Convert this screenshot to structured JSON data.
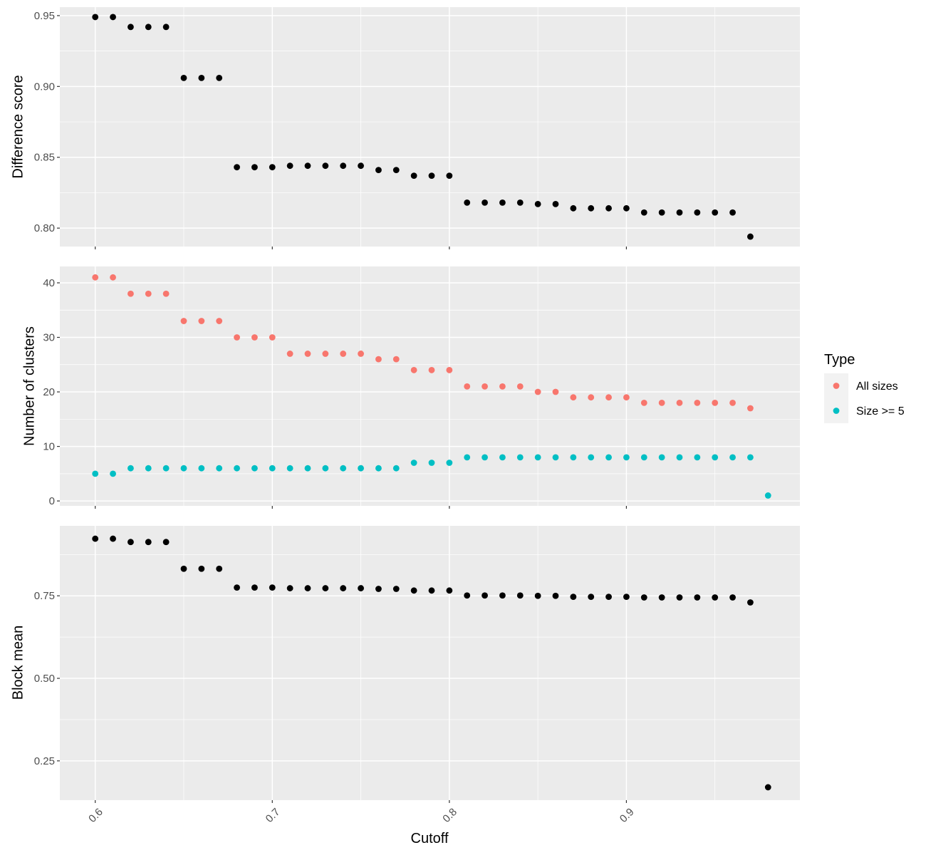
{
  "chart_data": [
    {
      "type": "scatter",
      "panel": "difference-score",
      "ylabel": "Difference score",
      "xlim": [
        0.58,
        0.998
      ],
      "ylim": [
        0.787,
        0.956
      ],
      "x_ticks": [
        0.6,
        0.7,
        0.8,
        0.9
      ],
      "y_ticks": [
        0.8,
        0.85,
        0.9,
        0.95
      ],
      "y_tick_labels": [
        "0.80",
        "0.85",
        "0.90",
        "0.95"
      ],
      "grid": true,
      "series": [
        {
          "color": "#000000",
          "x": [
            0.6,
            0.61,
            0.62,
            0.63,
            0.64,
            0.65,
            0.66,
            0.67,
            0.68,
            0.69,
            0.7,
            0.71,
            0.72,
            0.73,
            0.74,
            0.75,
            0.76,
            0.77,
            0.78,
            0.79,
            0.8,
            0.81,
            0.82,
            0.83,
            0.84,
            0.85,
            0.86,
            0.87,
            0.88,
            0.89,
            0.9,
            0.91,
            0.92,
            0.93,
            0.94,
            0.95,
            0.96,
            0.97
          ],
          "y": [
            0.949,
            0.949,
            0.942,
            0.942,
            0.942,
            0.906,
            0.906,
            0.906,
            0.843,
            0.843,
            0.843,
            0.844,
            0.844,
            0.844,
            0.844,
            0.844,
            0.841,
            0.841,
            0.837,
            0.837,
            0.837,
            0.818,
            0.818,
            0.818,
            0.818,
            0.817,
            0.817,
            0.814,
            0.814,
            0.814,
            0.814,
            0.811,
            0.811,
            0.811,
            0.811,
            0.811,
            0.811,
            0.794
          ]
        }
      ]
    },
    {
      "type": "scatter",
      "panel": "number-of-clusters",
      "ylabel": "Number of clusters",
      "xlim": [
        0.58,
        0.998
      ],
      "ylim": [
        -0.9,
        43.0
      ],
      "x_ticks": [
        0.6,
        0.7,
        0.8,
        0.9
      ],
      "y_ticks": [
        0,
        10,
        20,
        30,
        40
      ],
      "y_tick_labels": [
        "0",
        "10",
        "20",
        "30",
        "40"
      ],
      "grid": true,
      "series": [
        {
          "name": "All sizes",
          "color": "#F8766D",
          "x": [
            0.6,
            0.61,
            0.62,
            0.63,
            0.64,
            0.65,
            0.66,
            0.67,
            0.68,
            0.69,
            0.7,
            0.71,
            0.72,
            0.73,
            0.74,
            0.75,
            0.76,
            0.77,
            0.78,
            0.79,
            0.8,
            0.81,
            0.82,
            0.83,
            0.84,
            0.85,
            0.86,
            0.87,
            0.88,
            0.89,
            0.9,
            0.91,
            0.92,
            0.93,
            0.94,
            0.95,
            0.96,
            0.97
          ],
          "y": [
            41,
            41,
            38,
            38,
            38,
            33,
            33,
            33,
            30,
            30,
            30,
            27,
            27,
            27,
            27,
            27,
            26,
            26,
            24,
            24,
            24,
            21,
            21,
            21,
            21,
            20,
            20,
            19,
            19,
            19,
            19,
            18,
            18,
            18,
            18,
            18,
            18,
            17
          ]
        },
        {
          "name": "Size >= 5",
          "color": "#00BFC4",
          "x": [
            0.6,
            0.61,
            0.62,
            0.63,
            0.64,
            0.65,
            0.66,
            0.67,
            0.68,
            0.69,
            0.7,
            0.71,
            0.72,
            0.73,
            0.74,
            0.75,
            0.76,
            0.77,
            0.78,
            0.79,
            0.8,
            0.81,
            0.82,
            0.83,
            0.84,
            0.85,
            0.86,
            0.87,
            0.88,
            0.89,
            0.9,
            0.91,
            0.92,
            0.93,
            0.94,
            0.95,
            0.96,
            0.97,
            0.98
          ],
          "y": [
            5,
            5,
            6,
            6,
            6,
            6,
            6,
            6,
            6,
            6,
            6,
            6,
            6,
            6,
            6,
            6,
            6,
            6,
            7,
            7,
            7,
            8,
            8,
            8,
            8,
            8,
            8,
            8,
            8,
            8,
            8,
            8,
            8,
            8,
            8,
            8,
            8,
            8,
            1
          ]
        }
      ]
    },
    {
      "type": "scatter",
      "panel": "block-mean",
      "ylabel": "Block mean",
      "xlabel": "Cutoff",
      "xlim": [
        0.58,
        0.998
      ],
      "ylim": [
        0.131,
        0.962
      ],
      "x_ticks": [
        0.6,
        0.7,
        0.8,
        0.9
      ],
      "x_tick_labels": [
        "0.6",
        "0.7",
        "0.8",
        "0.9"
      ],
      "y_ticks": [
        0.25,
        0.5,
        0.75
      ],
      "y_tick_labels": [
        "0.25",
        "0.50",
        "0.75"
      ],
      "grid": true,
      "series": [
        {
          "color": "#000000",
          "x": [
            0.6,
            0.61,
            0.62,
            0.63,
            0.64,
            0.65,
            0.66,
            0.67,
            0.68,
            0.69,
            0.7,
            0.71,
            0.72,
            0.73,
            0.74,
            0.75,
            0.76,
            0.77,
            0.78,
            0.79,
            0.8,
            0.81,
            0.82,
            0.83,
            0.84,
            0.85,
            0.86,
            0.87,
            0.88,
            0.89,
            0.9,
            0.91,
            0.92,
            0.93,
            0.94,
            0.95,
            0.96,
            0.97,
            0.98
          ],
          "y": [
            0.923,
            0.923,
            0.913,
            0.913,
            0.913,
            0.832,
            0.832,
            0.832,
            0.775,
            0.775,
            0.775,
            0.773,
            0.773,
            0.773,
            0.773,
            0.773,
            0.771,
            0.771,
            0.766,
            0.766,
            0.766,
            0.751,
            0.751,
            0.751,
            0.751,
            0.75,
            0.75,
            0.747,
            0.747,
            0.747,
            0.747,
            0.745,
            0.745,
            0.745,
            0.745,
            0.745,
            0.745,
            0.73,
            0.17
          ]
        }
      ]
    }
  ],
  "legend": {
    "title": "Type",
    "placement": "right",
    "items": [
      {
        "label": "All sizes",
        "color": "#F8766D"
      },
      {
        "label": "Size >= 5",
        "color": "#00BFC4"
      }
    ]
  }
}
